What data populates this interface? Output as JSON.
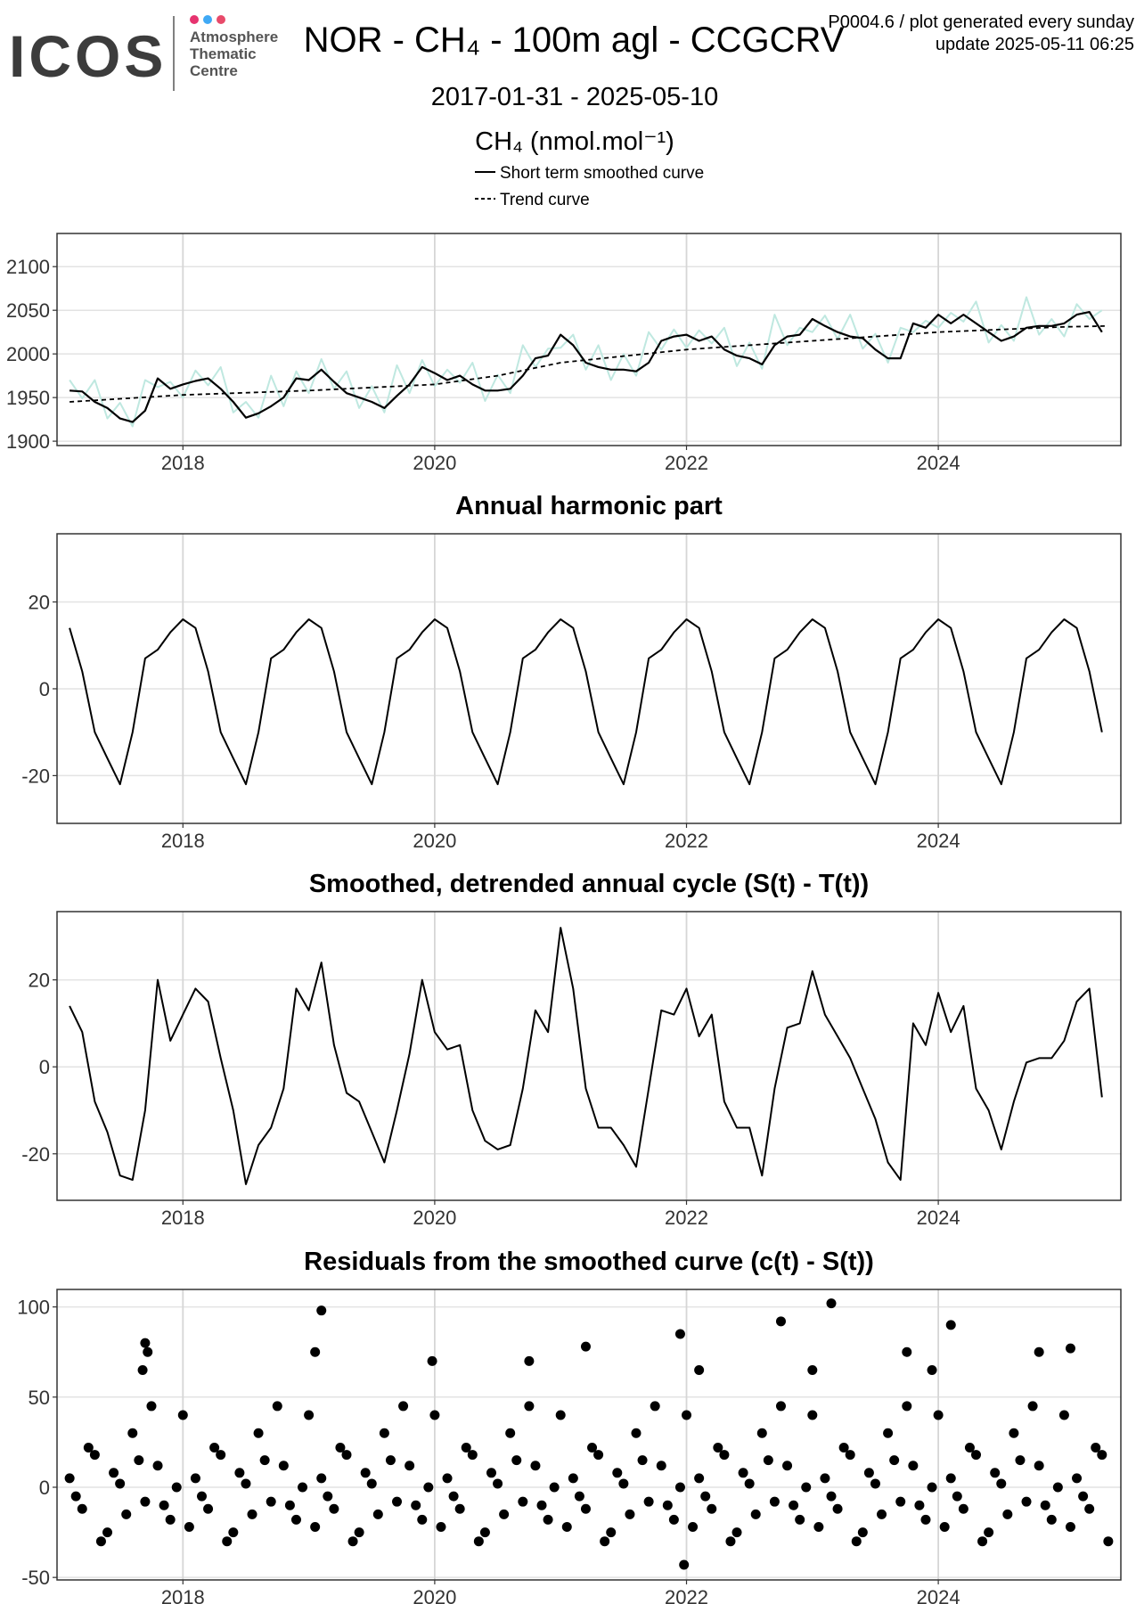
{
  "header": {
    "logo": "ICOS",
    "logo_sub": [
      "Atmosphere",
      "Thematic",
      "Centre"
    ],
    "note": "P0004.6 / plot generated every sunday",
    "update": "update  2025-05-11 06:25"
  },
  "chart_data": [
    {
      "type": "line",
      "title": "NOR - CH₄ - 100m agl - CCGCRV",
      "subtitle": "2017-01-31 - 2025-05-10",
      "y_label": "CH₄ (nmol.mol⁻¹)",
      "xlim": [
        2017.0,
        2025.45
      ],
      "xticks": [
        2018,
        2020,
        2022,
        2024
      ],
      "ylim": [
        1895,
        2138
      ],
      "yticks": [
        1900,
        1950,
        2000,
        2050,
        2100
      ],
      "grid": true,
      "x": [
        2017.1,
        2017.2,
        2017.3,
        2017.4,
        2017.5,
        2017.6,
        2017.7,
        2017.8,
        2017.9,
        2018,
        2018.1,
        2018.2,
        2018.3,
        2018.4,
        2018.5,
        2018.6,
        2018.7,
        2018.8,
        2018.9,
        2019,
        2019.1,
        2019.2,
        2019.3,
        2019.4,
        2019.5,
        2019.6,
        2019.7,
        2019.8,
        2019.9,
        2020,
        2020.1,
        2020.2,
        2020.3,
        2020.4,
        2020.5,
        2020.6,
        2020.7,
        2020.8,
        2020.9,
        2021,
        2021.1,
        2021.2,
        2021.3,
        2021.4,
        2021.5,
        2021.6,
        2021.7,
        2021.8,
        2021.9,
        2022,
        2022.1,
        2022.2,
        2022.3,
        2022.4,
        2022.5,
        2022.6,
        2022.7,
        2022.8,
        2022.9,
        2023,
        2023.1,
        2023.2,
        2023.3,
        2023.4,
        2023.5,
        2023.6,
        2023.7,
        2023.8,
        2023.9,
        2024,
        2024.1,
        2024.2,
        2024.3,
        2024.4,
        2024.5,
        2024.6,
        2024.7,
        2024.8,
        2024.9,
        2025,
        2025.1,
        2025.2,
        2025.3
      ],
      "series": [
        {
          "color": "#bfe8e0",
          "values": [
            1970,
            1949,
            1970,
            1926,
            1944,
            1917,
            1970,
            1962,
            1968,
            1950,
            1981,
            1964,
            1985,
            1933,
            1945,
            1927,
            1975,
            1940,
            1980,
            1955,
            1994,
            1960,
            1980,
            1938,
            1963,
            1933,
            1987,
            1955,
            1993,
            1963,
            1982,
            1967,
            1990,
            1946,
            1976,
            1955,
            2010,
            1985,
            2006,
            2007,
            2022,
            1982,
            2010,
            1970,
            2000,
            1975,
            2025,
            2005,
            2028,
            2007,
            2027,
            2012,
            2030,
            1986,
            2013,
            1983,
            2045,
            2010,
            2030,
            2025,
            2044,
            2017,
            2045,
            2006,
            2023,
            1990,
            2030,
            2025,
            2038,
            2030,
            2047,
            2037,
            2060,
            2013,
            2033,
            2015,
            2065,
            2022,
            2040,
            2020,
            2057,
            2040,
            2050
          ]
        },
        {
          "name": "Short term smoothed curve",
          "color": "#000000",
          "values": [
            1958,
            1957,
            1945,
            1938,
            1926,
            1922,
            1935,
            1972,
            1960,
            1965,
            1969,
            1972,
            1960,
            1945,
            1927,
            1932,
            1940,
            1950,
            1972,
            1970,
            1982,
            1968,
            1955,
            1950,
            1945,
            1938,
            1952,
            1965,
            1985,
            1978,
            1970,
            1975,
            1965,
            1958,
            1958,
            1960,
            1975,
            1995,
            1998,
            2022,
            2010,
            1990,
            1985,
            1982,
            1982,
            1980,
            1990,
            2015,
            2020,
            2022,
            2015,
            2020,
            2005,
            1998,
            1995,
            1988,
            2010,
            2020,
            2022,
            2040,
            2032,
            2025,
            2020,
            2018,
            2005,
            1995,
            1995,
            2035,
            2030,
            2045,
            2035,
            2045,
            2035,
            2025,
            2015,
            2020,
            2030,
            2032,
            2032,
            2035,
            2045,
            2048,
            2025
          ]
        },
        {
          "name": "Trend curve",
          "color": "#000000",
          "dashed": true,
          "x": [
            2017.1,
            2018,
            2019,
            2020,
            2020.5,
            2021,
            2022,
            2023,
            2024,
            2025,
            2025.35
          ],
          "values": [
            1945,
            1953,
            1958,
            1965,
            1975,
            1990,
            2005,
            2015,
            2025,
            2031,
            2032
          ]
        }
      ]
    },
    {
      "type": "line",
      "title": "Annual harmonic part",
      "xlim": [
        2017.0,
        2025.45
      ],
      "xticks": [
        2018,
        2020,
        2022,
        2024
      ],
      "ylim": [
        -31,
        35.7
      ],
      "yticks": [
        -20,
        0,
        20
      ],
      "grid": true,
      "color": "#000000",
      "x": [
        2017.1,
        2017.2,
        2017.3,
        2017.4,
        2017.5,
        2017.6,
        2017.7,
        2017.8,
        2017.9,
        2018,
        2018.1,
        2018.2,
        2018.3,
        2018.4,
        2018.5,
        2018.6,
        2018.7,
        2018.8,
        2018.9,
        2019,
        2019.1,
        2019.2,
        2019.3,
        2019.4,
        2019.5,
        2019.6,
        2019.7,
        2019.8,
        2019.9,
        2020,
        2020.1,
        2020.2,
        2020.3,
        2020.4,
        2020.5,
        2020.6,
        2020.7,
        2020.8,
        2020.9,
        2021,
        2021.1,
        2021.2,
        2021.3,
        2021.4,
        2021.5,
        2021.6,
        2021.7,
        2021.8,
        2021.9,
        2022,
        2022.1,
        2022.2,
        2022.3,
        2022.4,
        2022.5,
        2022.6,
        2022.7,
        2022.8,
        2022.9,
        2023,
        2023.1,
        2023.2,
        2023.3,
        2023.4,
        2023.5,
        2023.6,
        2023.7,
        2023.8,
        2023.9,
        2024,
        2024.1,
        2024.2,
        2024.3,
        2024.4,
        2024.5,
        2024.6,
        2024.7,
        2024.8,
        2024.9,
        2025,
        2025.1,
        2025.2,
        2025.3
      ],
      "values": [
        14,
        4,
        -10,
        -16,
        -22,
        -10,
        7,
        9,
        13,
        16,
        14,
        4,
        -10,
        -16,
        -22,
        -10,
        7,
        9,
        13,
        16,
        14,
        4,
        -10,
        -16,
        -22,
        -10,
        7,
        9,
        13,
        16,
        14,
        4,
        -10,
        -16,
        -22,
        -10,
        7,
        9,
        13,
        16,
        14,
        4,
        -10,
        -16,
        -22,
        -10,
        7,
        9,
        13,
        16,
        14,
        4,
        -10,
        -16,
        -22,
        -10,
        7,
        9,
        13,
        16,
        14,
        4,
        -10,
        -16,
        -22,
        -10,
        7,
        9,
        13,
        16,
        14,
        4,
        -10,
        -16,
        -22,
        -10,
        7,
        9,
        13,
        16,
        14,
        4,
        -10
      ]
    },
    {
      "type": "line",
      "title": "Smoothed, detrended annual cycle (S(t) - T(t))",
      "xlim": [
        2017.0,
        2025.45
      ],
      "xticks": [
        2018,
        2020,
        2022,
        2024
      ],
      "ylim": [
        -30.7,
        35.7
      ],
      "yticks": [
        -20,
        0,
        20
      ],
      "grid": true,
      "color": "#000000",
      "x": [
        2017.1,
        2017.2,
        2017.3,
        2017.4,
        2017.5,
        2017.6,
        2017.7,
        2017.8,
        2017.9,
        2018,
        2018.1,
        2018.2,
        2018.3,
        2018.4,
        2018.5,
        2018.6,
        2018.7,
        2018.8,
        2018.9,
        2019,
        2019.1,
        2019.2,
        2019.3,
        2019.4,
        2019.5,
        2019.6,
        2019.7,
        2019.8,
        2019.9,
        2020,
        2020.1,
        2020.2,
        2020.3,
        2020.4,
        2020.5,
        2020.6,
        2020.7,
        2020.8,
        2020.9,
        2021,
        2021.1,
        2021.2,
        2021.3,
        2021.4,
        2021.5,
        2021.6,
        2021.7,
        2021.8,
        2021.9,
        2022,
        2022.1,
        2022.2,
        2022.3,
        2022.4,
        2022.5,
        2022.6,
        2022.7,
        2022.8,
        2022.9,
        2023,
        2023.1,
        2023.2,
        2023.3,
        2023.4,
        2023.5,
        2023.6,
        2023.7,
        2023.8,
        2023.9,
        2024,
        2024.1,
        2024.2,
        2024.3,
        2024.4,
        2024.5,
        2024.6,
        2024.7,
        2024.8,
        2024.9,
        2025,
        2025.1,
        2025.2,
        2025.3
      ],
      "values": [
        14,
        8,
        -8,
        -15,
        -25,
        -26,
        -10,
        20,
        6,
        12,
        18,
        15,
        2,
        -10,
        -27,
        -18,
        -14,
        -5,
        18,
        13,
        24,
        5,
        -6,
        -8,
        -15,
        -22,
        -10,
        3,
        20,
        8,
        4,
        5,
        -10,
        -17,
        -19,
        -18,
        -5,
        13,
        8,
        32,
        18,
        -5,
        -14,
        -14,
        -18,
        -23,
        -5,
        13,
        12,
        18,
        7,
        12,
        -8,
        -14,
        -14,
        -25,
        -5,
        9,
        10,
        22,
        12,
        7,
        2,
        -5,
        -12,
        -22,
        -26,
        10,
        5,
        17,
        8,
        14,
        -5,
        -10,
        -19,
        -8,
        1,
        2,
        2,
        6,
        15,
        18,
        -7
      ]
    },
    {
      "type": "scatter",
      "title": "Residuals from the smoothed curve (c(t) - S(t))",
      "xlim": [
        2017.0,
        2025.45
      ],
      "xticks": [
        2018,
        2020,
        2022,
        2024
      ],
      "ylim": [
        -51.4,
        109.7
      ],
      "yticks": [
        -50,
        0,
        50,
        100
      ],
      "grid": true,
      "color": "#000000",
      "x": [
        2017.1,
        2017.2,
        2017.3,
        2017.4,
        2017.5,
        2017.6,
        2017.7,
        2017.8,
        2017.9,
        2018,
        2018.1,
        2018.2,
        2018.3,
        2018.4,
        2018.5,
        2018.6,
        2018.7,
        2018.8,
        2018.9,
        2019,
        2019.1,
        2019.2,
        2019.3,
        2019.4,
        2019.5,
        2019.6,
        2019.7,
        2019.8,
        2019.9,
        2020,
        2020.1,
        2020.2,
        2020.3,
        2020.4,
        2020.5,
        2020.6,
        2020.7,
        2020.8,
        2020.9,
        2021,
        2021.1,
        2021.2,
        2021.3,
        2021.4,
        2021.5,
        2021.6,
        2021.7,
        2021.8,
        2021.9,
        2022,
        2022.1,
        2022.2,
        2022.3,
        2022.4,
        2022.5,
        2022.6,
        2022.7,
        2022.8,
        2022.9,
        2023,
        2023.1,
        2023.2,
        2023.3,
        2023.4,
        2023.5,
        2023.6,
        2023.7,
        2023.8,
        2023.9,
        2024,
        2024.1,
        2024.2,
        2024.3,
        2024.4,
        2024.5,
        2024.6,
        2024.7,
        2024.8,
        2024.9,
        2025,
        2025.1,
        2025.2,
        2025.3,
        2017.15,
        2017.25,
        2017.35,
        2017.45,
        2017.55,
        2017.65,
        2017.75,
        2017.85,
        2017.95,
        2018.05,
        2018.15,
        2018.25,
        2018.35,
        2018.45,
        2018.55,
        2018.65,
        2018.75,
        2018.85,
        2018.95,
        2019.05,
        2019.15,
        2019.25,
        2019.35,
        2019.45,
        2019.55,
        2019.65,
        2019.75,
        2019.85,
        2019.95,
        2020.05,
        2020.15,
        2020.25,
        2020.35,
        2020.45,
        2020.55,
        2020.65,
        2020.75,
        2020.85,
        2020.95,
        2021.05,
        2021.15,
        2021.25,
        2021.35,
        2021.45,
        2021.55,
        2021.65,
        2021.75,
        2021.85,
        2021.95,
        2022.05,
        2022.15,
        2022.25,
        2022.35,
        2022.45,
        2022.55,
        2022.65,
        2022.75,
        2022.85,
        2022.95,
        2023.05,
        2023.15,
        2023.25,
        2023.35,
        2023.45,
        2023.55,
        2023.65,
        2023.75,
        2023.85,
        2023.95,
        2024.05,
        2024.15,
        2024.25,
        2024.35,
        2024.45,
        2024.55,
        2024.65,
        2024.75,
        2024.85,
        2024.95,
        2025.05,
        2025.15,
        2025.25,
        2025.35,
        2017.68,
        2017.7,
        2017.72,
        2019.05,
        2019.1,
        2019.98,
        2020.75,
        2021.2,
        2021.95,
        2021.98,
        2022.1,
        2022.75,
        2023.0,
        2023.15,
        2023.75,
        2023.95,
        2024.1,
        2024.8,
        2025.05
      ],
      "values": [
        5,
        -12,
        18,
        -25,
        2,
        30,
        -8,
        12,
        -18,
        40,
        5,
        -12,
        18,
        -25,
        2,
        30,
        -8,
        12,
        -18,
        40,
        5,
        -12,
        18,
        -25,
        2,
        30,
        -8,
        12,
        -18,
        40,
        5,
        -12,
        18,
        -25,
        2,
        30,
        -8,
        12,
        -18,
        40,
        5,
        -12,
        18,
        -25,
        2,
        30,
        -8,
        12,
        -18,
        40,
        5,
        -12,
        18,
        -25,
        2,
        30,
        -8,
        12,
        -18,
        40,
        5,
        -12,
        18,
        -25,
        2,
        30,
        -8,
        12,
        -18,
        40,
        5,
        -12,
        18,
        -25,
        2,
        30,
        -8,
        12,
        -18,
        40,
        5,
        -12,
        18,
        -5,
        22,
        -30,
        8,
        -15,
        15,
        45,
        -10,
        0,
        -22,
        -5,
        22,
        -30,
        8,
        -15,
        15,
        45,
        -10,
        0,
        -22,
        -5,
        22,
        -30,
        8,
        -15,
        15,
        45,
        -10,
        0,
        -22,
        -5,
        22,
        -30,
        8,
        -15,
        15,
        45,
        -10,
        0,
        -22,
        -5,
        22,
        -30,
        8,
        -15,
        15,
        45,
        -10,
        0,
        -22,
        -5,
        22,
        -30,
        8,
        -15,
        15,
        45,
        -10,
        0,
        -22,
        -5,
        22,
        -30,
        8,
        -15,
        15,
        45,
        -10,
        0,
        -22,
        -5,
        22,
        -30,
        8,
        -15,
        15,
        45,
        -10,
        0,
        -22,
        -5,
        22,
        -30,
        65,
        80,
        75,
        75,
        98,
        70,
        70,
        78,
        85,
        -43,
        65,
        92,
        65,
        102,
        75,
        65,
        90,
        75,
        77
      ]
    }
  ]
}
